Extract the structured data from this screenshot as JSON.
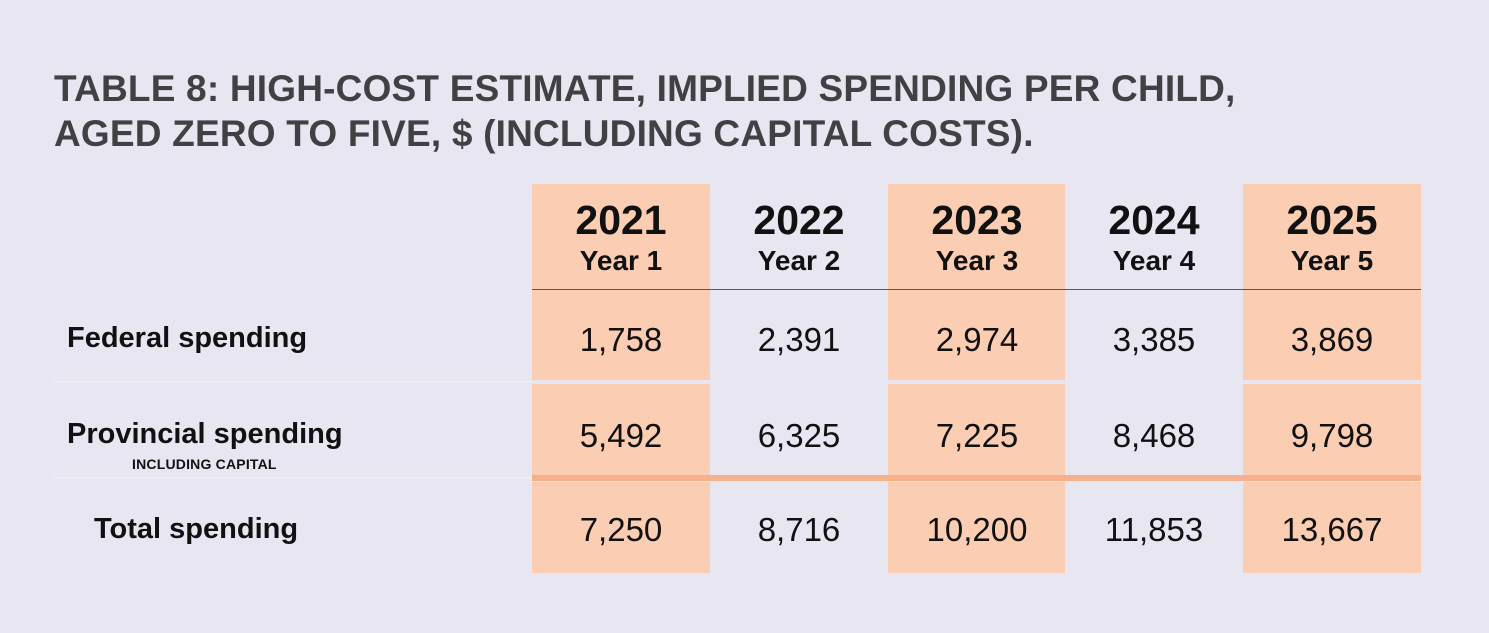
{
  "title": {
    "line1": "TABLE 8: HIGH-COST ESTIMATE, IMPLIED SPENDING PER CHILD,",
    "line2": "AGED ZERO TO FIVE, $ (INCLUDING CAPITAL COSTS)."
  },
  "columns": [
    {
      "year": "2021",
      "label": "Year 1"
    },
    {
      "year": "2022",
      "label": "Year 2"
    },
    {
      "year": "2023",
      "label": "Year 3"
    },
    {
      "year": "2024",
      "label": "Year 4"
    },
    {
      "year": "2025",
      "label": "Year 5"
    }
  ],
  "rows": [
    {
      "label": "Federal spending",
      "note": "",
      "values": [
        "1,758",
        "2,391",
        "2,974",
        "3,385",
        "3,869"
      ]
    },
    {
      "label": "Provincial spending",
      "note": "INCLUDING CAPITAL",
      "values": [
        "5,492",
        "6,325",
        "7,225",
        "8,468",
        "9,798"
      ]
    },
    {
      "label": "Total spending",
      "note": "",
      "values": [
        "7,250",
        "8,716",
        "10,200",
        "11,853",
        "13,667"
      ]
    }
  ],
  "colors": {
    "background": "#e8e6f1",
    "highlight": "#fbcdb2",
    "total_rule": "#f7b08c",
    "title_text": "#414042"
  }
}
